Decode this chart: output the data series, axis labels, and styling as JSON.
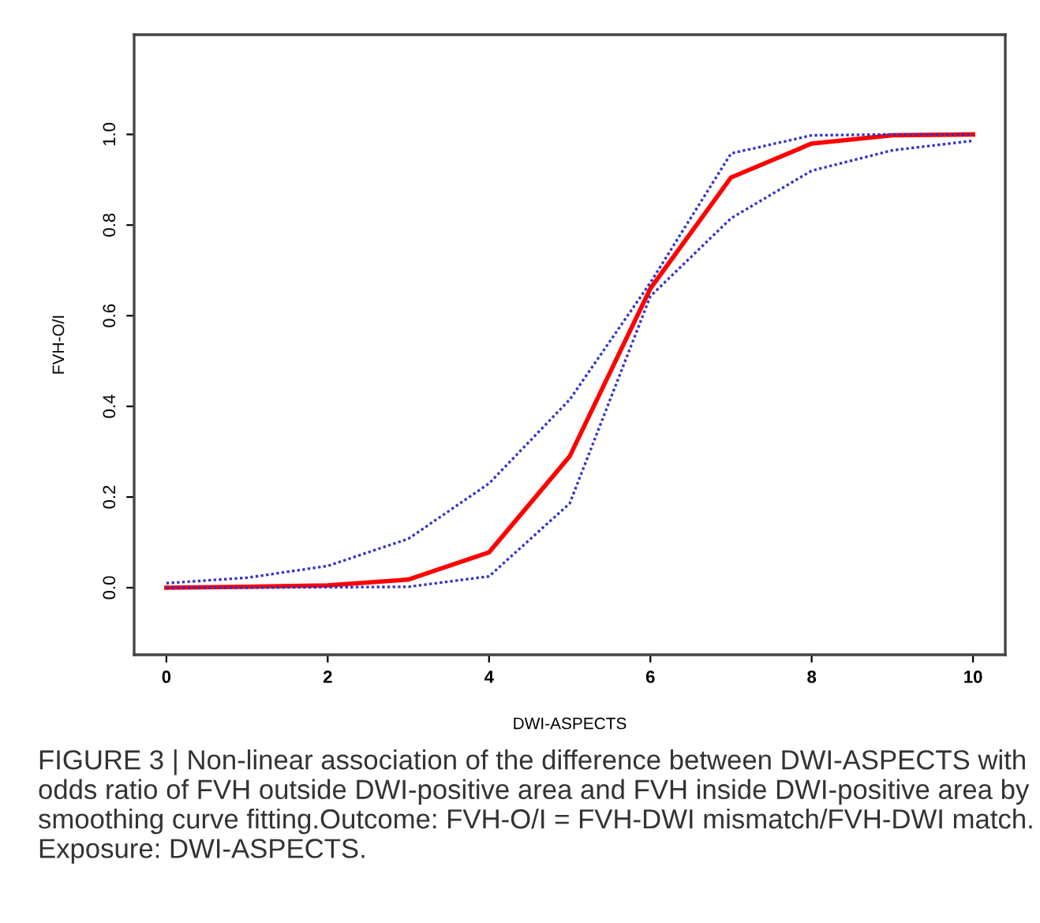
{
  "chart_data": {
    "type": "line",
    "xlabel": "DWI-ASPECTS",
    "ylabel": "FVH-O/I",
    "x": [
      0,
      1,
      2,
      3,
      4,
      5,
      6,
      7,
      8,
      9,
      10
    ],
    "series": [
      {
        "color": "#ff0000",
        "line_style": "solid",
        "values": [
          0,
          0.002,
          0.005,
          0.018,
          0.078,
          0.29,
          0.66,
          0.905,
          0.98,
          0.998,
          1.0
        ]
      },
      {
        "color": "#3333cc",
        "line_style": "dotted",
        "values": [
          0.01,
          0.022,
          0.048,
          0.108,
          0.23,
          0.415,
          0.673,
          0.958,
          0.998,
          1.0,
          1.0
        ]
      },
      {
        "color": "#3333cc",
        "line_style": "dotted",
        "values": [
          0,
          0,
          0.001,
          0.002,
          0.025,
          0.186,
          0.643,
          0.815,
          0.92,
          0.965,
          0.986
        ]
      }
    ],
    "xlim": [
      -0.4,
      10.4
    ],
    "ylim": [
      -0.148,
      1.22
    ],
    "xticks": [
      0,
      2,
      4,
      6,
      8,
      10
    ],
    "yticks": [
      {
        "value": 0,
        "label": "0.0"
      },
      {
        "value": 0.2,
        "label": "0.2"
      },
      {
        "value": 0.4,
        "label": "0.4"
      },
      {
        "value": 0.6,
        "label": "0.6"
      },
      {
        "value": 0.8,
        "label": "0.8"
      },
      {
        "value": 1,
        "label": "1.0"
      }
    ],
    "grid": false,
    "marker": "none",
    "annotations": [
      "FIGURE 3 | Non-linear association of the difference between DWI-ASPECTS with odds ratio of FVH outside DWI-positive area and FVH inside DWI-positive area by smoothing curve fitting.Outcome: FVH-O/I = FVH-DWI mismatch/FVH-DWI match. Exposure: DWI-ASPECTS."
    ]
  }
}
